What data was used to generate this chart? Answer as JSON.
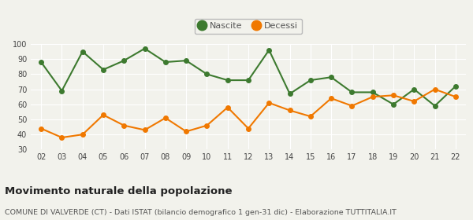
{
  "years": [
    "02",
    "03",
    "04",
    "05",
    "06",
    "07",
    "08",
    "09",
    "10",
    "11",
    "12",
    "13",
    "14",
    "15",
    "16",
    "17",
    "18",
    "19",
    "20",
    "21",
    "22"
  ],
  "nascite": [
    88,
    69,
    95,
    83,
    89,
    97,
    88,
    89,
    80,
    76,
    76,
    96,
    67,
    76,
    78,
    68,
    68,
    60,
    70,
    59,
    72
  ],
  "decessi": [
    44,
    38,
    40,
    53,
    46,
    43,
    51,
    42,
    46,
    58,
    44,
    61,
    56,
    52,
    64,
    59,
    65,
    66,
    62,
    70,
    65
  ],
  "nascite_color": "#3d7a2f",
  "decessi_color": "#f07800",
  "background_color": "#f2f2ec",
  "grid_color": "#ffffff",
  "title": "Movimento naturale della popolazione",
  "subtitle": "COMUNE DI VALVERDE (CT) - Dati ISTAT (bilancio demografico 1 gen-31 dic) - Elaborazione TUTTITALIA.IT",
  "legend_nascite": "Nascite",
  "legend_decessi": "Decessi",
  "ylim": [
    30,
    100
  ],
  "yticks": [
    30,
    40,
    50,
    60,
    70,
    80,
    90,
    100
  ],
  "title_fontsize": 9.5,
  "subtitle_fontsize": 6.8,
  "tick_fontsize": 7.0,
  "legend_fontsize": 8.0,
  "marker_size": 4.0,
  "line_width": 1.5
}
